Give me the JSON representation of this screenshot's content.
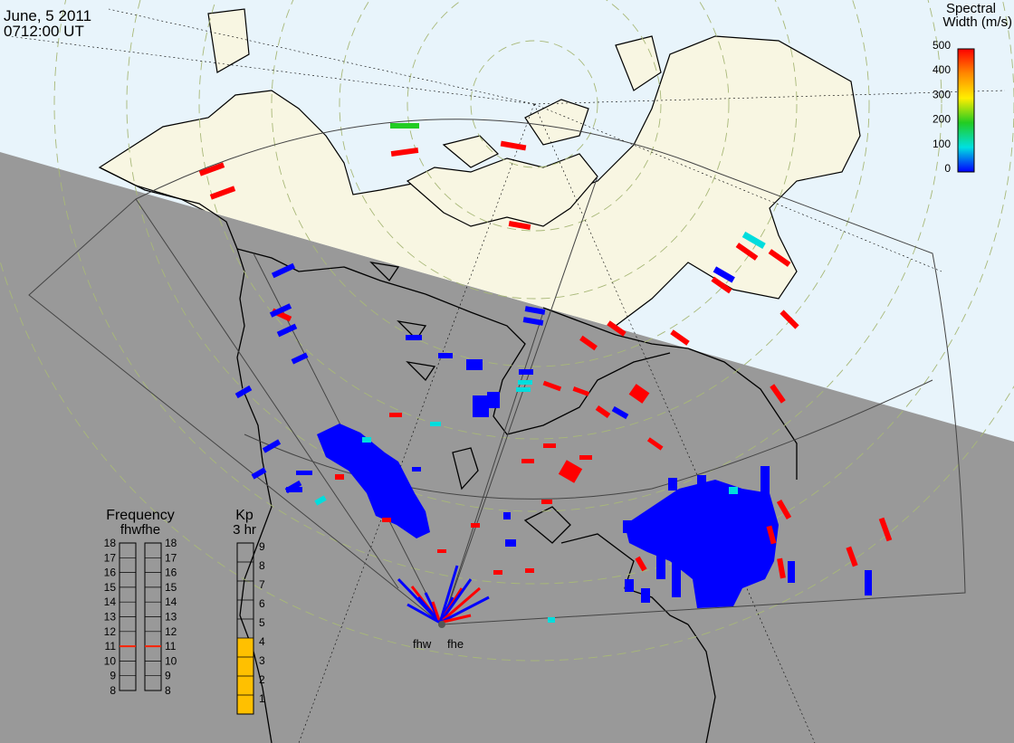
{
  "header": {
    "date": "June, 5 2011",
    "time": "0712:00 UT"
  },
  "colorbar": {
    "title_line1": "Spectral",
    "title_line2": "Width (m/s)",
    "ticks": [
      "500",
      "400",
      "300",
      "200",
      "100",
      "0"
    ],
    "colors": [
      "#ff0000",
      "#ff8800",
      "#ffee00",
      "#22cc22",
      "#00e0e0",
      "#0000ff"
    ]
  },
  "radars": {
    "west_code": "fhw",
    "east_code": "fhe"
  },
  "frequency_panel": {
    "title": "Frequency",
    "subtitle": "fhwfhe",
    "scale": [
      "18",
      "17",
      "16",
      "15",
      "14",
      "13",
      "12",
      "11",
      "10",
      "9",
      "8"
    ],
    "fhw_marker": 11,
    "fhe_marker": 11
  },
  "kp_panel": {
    "title": "Kp",
    "subtitle": "3 hr",
    "scale": [
      "9",
      "8",
      "7",
      "6",
      "5",
      "4",
      "3",
      "2",
      "1"
    ],
    "value": 4,
    "fill_color": "#ffc000"
  },
  "map_colors": {
    "night": "#999999",
    "day_ocean": "#e8f4fb",
    "day_land": "#f8f6e2"
  }
}
